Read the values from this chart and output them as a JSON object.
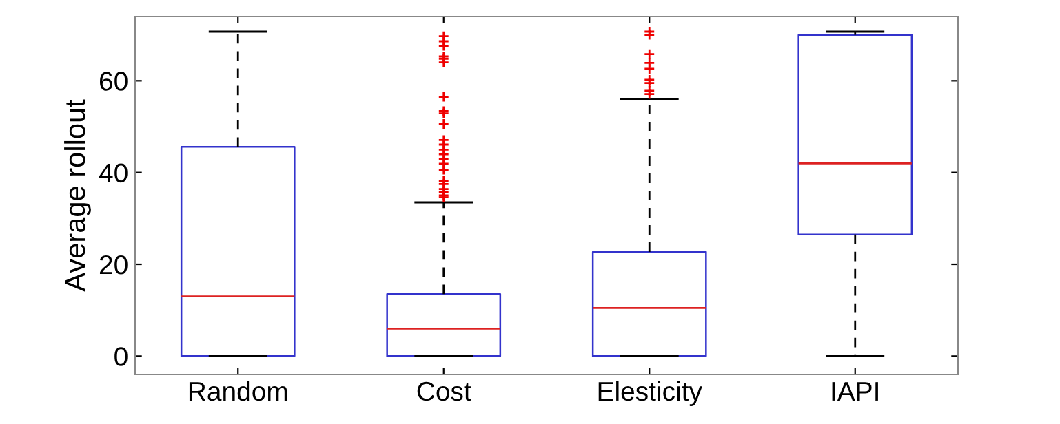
{
  "chart_data": {
    "type": "box",
    "ylabel": "Average rollout",
    "categories": [
      "Random",
      "Cost",
      "Elesticity",
      "IAPI"
    ],
    "ylim": [
      -4,
      74
    ],
    "yticks": [
      0,
      20,
      40,
      60
    ],
    "grid": false,
    "marker": "cross",
    "series": [
      {
        "color": "#3333cc",
        "boxes": [
          {
            "low": 0,
            "q1": 0,
            "median": 13,
            "q3": 45.6,
            "high": 70.7
          },
          {
            "low": 0,
            "q1": 0,
            "median": 6,
            "q3": 13.5,
            "high": 33.5,
            "outliers": [
              69.7,
              68.6,
              67.6,
              65.3,
              64.8,
              64.0,
              56.5,
              53.4,
              52.9,
              50.6,
              47.1,
              46.1,
              45.0,
              44.0,
              42.9,
              41.9,
              40.6,
              38.2,
              37.5,
              36.4,
              35.8,
              35.0,
              34.6
            ]
          },
          {
            "low": 0,
            "q1": 0,
            "median": 10.5,
            "q3": 22.7,
            "high": 56,
            "outliers": [
              70.7,
              70.0,
              65.8,
              63.9,
              62.6,
              60.2,
              59.5,
              57.8,
              57.1
            ]
          },
          {
            "low": 0,
            "q1": 26.5,
            "median": 42,
            "q3": 70,
            "high": 70.7
          }
        ]
      }
    ]
  }
}
